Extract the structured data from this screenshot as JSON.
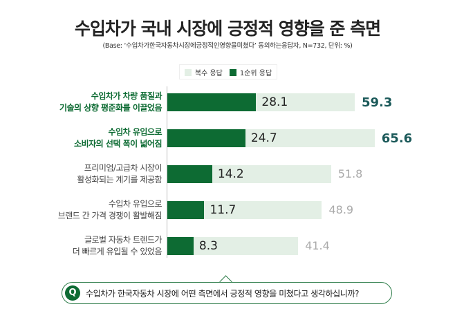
{
  "chart_data": {
    "type": "bar",
    "orientation": "horizontal",
    "title": "수입차가 국내 시장에 긍정적 영향을 준 측면",
    "subtitle": "(Base: ‘수입차가한국자동차시장에긍정적인영향을미쳤다’ 동의하는응답자, N=732, 단위: %)",
    "legend_position": "top",
    "categories": [
      [
        "수입차가 차량 품질과",
        "기술의 상향 평준화를 이끌었음"
      ],
      [
        "수입차 유입으로",
        "소비자의 선택 폭이 넓어짐"
      ],
      [
        "프리미엄/고급차 시장이",
        "활성화되는 계기를 제공함"
      ],
      [
        "수입차 유입으로",
        "브랜드 간 가격 경쟁이 활발해짐"
      ],
      [
        "글로벌 자동차 트렌드가",
        "더 빠르게 유입될 수 있었음"
      ]
    ],
    "highlighted": [
      true,
      true,
      false,
      false,
      false
    ],
    "series": [
      {
        "name": "복수 응답",
        "color": "#e3efe5",
        "values": [
          59.3,
          65.6,
          51.8,
          48.9,
          41.4
        ]
      },
      {
        "name": "1순위 응답",
        "color": "#0d6b33",
        "values": [
          28.1,
          24.7,
          14.2,
          11.7,
          8.3
        ]
      }
    ],
    "xlim": [
      0,
      70
    ],
    "grid": false
  },
  "question": {
    "icon": "Q",
    "text": "수입차가 한국자동차 시장에 어떤 측면에서 긍정적 영향을 미쳤다고 생각하십니까?"
  }
}
